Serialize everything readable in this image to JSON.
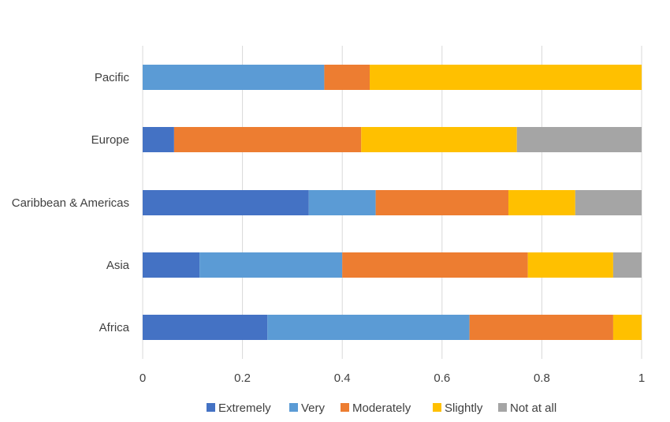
{
  "chart_data": {
    "type": "bar",
    "orientation": "horizontal",
    "stacked": true,
    "categories": [
      "Africa",
      "Asia",
      "Caribbean & Americas",
      "Europe",
      "Pacific"
    ],
    "series": [
      {
        "name": "Extremely",
        "color": "#4472C4",
        "values": [
          0.25,
          0.114,
          0.333,
          0.063,
          0.0
        ]
      },
      {
        "name": "Very",
        "color": "#5B9BD5",
        "values": [
          0.405,
          0.286,
          0.134,
          0.0,
          0.364
        ]
      },
      {
        "name": "Moderately",
        "color": "#ED7D31",
        "values": [
          0.288,
          0.372,
          0.266,
          0.375,
          0.091
        ]
      },
      {
        "name": "Slightly",
        "color": "#FFC000",
        "values": [
          0.057,
          0.171,
          0.134,
          0.312,
          0.545
        ]
      },
      {
        "name": "Not at all",
        "color": "#A5A5A5",
        "values": [
          0.0,
          0.057,
          0.133,
          0.25,
          0.0
        ]
      }
    ],
    "xlim": [
      0,
      1
    ],
    "xticks": [
      "0",
      "0.2",
      "0.4",
      "0.6",
      "0.8",
      "1"
    ],
    "grid": "vertical",
    "legend_position": "bottom",
    "title": "",
    "xlabel": "",
    "ylabel": ""
  }
}
